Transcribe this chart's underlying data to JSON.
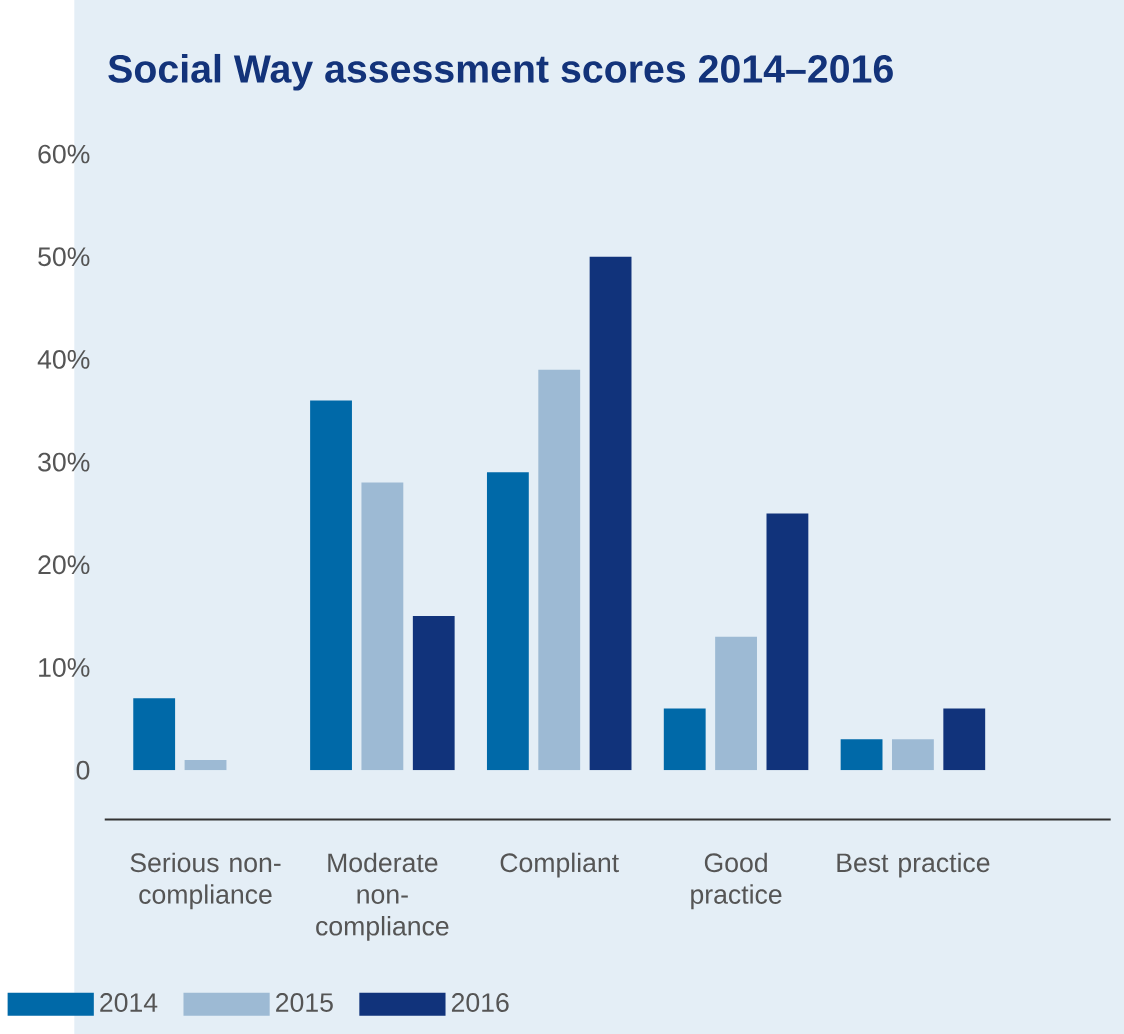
{
  "chart_data": {
    "type": "bar",
    "title": "Social Way assessment scores 2014–2016",
    "categories": [
      "Serious non-compliance",
      "Moderate non-compliance",
      "Compliant",
      "Good practice",
      "Best practice"
    ],
    "series": [
      {
        "name": "2014",
        "color": "#0069a8",
        "values": [
          7,
          36,
          29,
          6,
          3
        ]
      },
      {
        "name": "2015",
        "color": "#9dbad4",
        "values": [
          1,
          28,
          39,
          13,
          3
        ]
      },
      {
        "name": "2016",
        "color": "#11337b",
        "values": [
          null,
          15,
          50,
          25,
          6
        ]
      }
    ],
    "ylim": [
      0,
      60
    ],
    "yticks": [
      {
        "value": 0,
        "label": "0"
      },
      {
        "value": 10,
        "label": "10%"
      },
      {
        "value": 20,
        "label": "20%"
      },
      {
        "value": 30,
        "label": "30%"
      },
      {
        "value": 40,
        "label": "40%"
      },
      {
        "value": 50,
        "label": "50%"
      },
      {
        "value": 60,
        "label": "60%"
      }
    ],
    "legend": "bottom left"
  }
}
